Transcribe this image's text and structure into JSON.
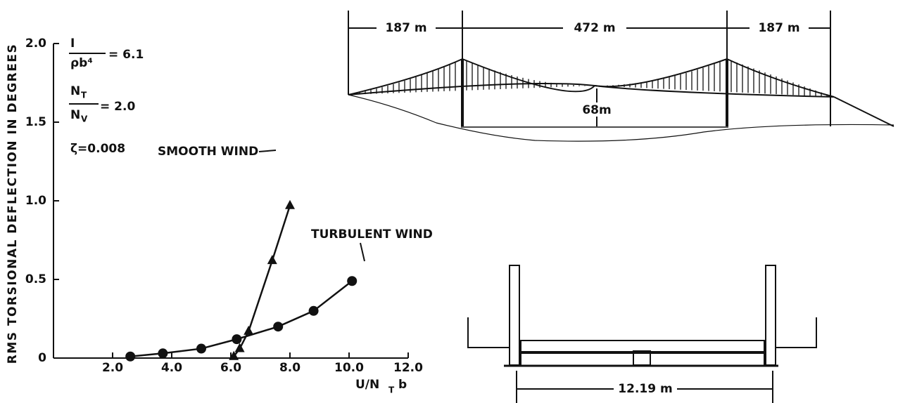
{
  "chart_data": {
    "type": "line",
    "y_label": "RMS TORSIONAL DEFLECTION IN DEGREES",
    "x_label": {
      "main": "U/N",
      "sub": "T",
      "tail": "b"
    },
    "xlim": [
      0,
      12
    ],
    "ylim": [
      0,
      2
    ],
    "xticks": [
      {
        "value": 2,
        "label": "2.0"
      },
      {
        "value": 4,
        "label": "4.0"
      },
      {
        "value": 6,
        "label": "6.0"
      },
      {
        "value": 8,
        "label": "8.0"
      },
      {
        "value": 10,
        "label": "10.0"
      },
      {
        "value": 12,
        "label": "12.0"
      }
    ],
    "yticks": [
      0,
      0.5,
      {
        "value": 1,
        "label": "1.0"
      },
      {
        "value": 1.5,
        "label": "1.5"
      },
      {
        "value": 2,
        "label": "2.0"
      }
    ],
    "series": [
      {
        "name": "SMOOTH WIND",
        "marker": "triangle",
        "color": "#111111",
        "x": [
          6.1,
          6.3,
          6.6,
          7.4,
          8.0
        ],
        "values": [
          0.01,
          0.06,
          0.17,
          0.62,
          0.97
        ]
      },
      {
        "name": "TURBULENT WIND",
        "marker": "circle",
        "color": "#111111",
        "x": [
          2.6,
          3.7,
          5.0,
          6.2,
          7.6,
          8.8,
          10.1
        ],
        "values": [
          0.01,
          0.03,
          0.06,
          0.12,
          0.2,
          0.3,
          0.49
        ]
      }
    ],
    "parameters": {
      "inertia": {
        "num": "I",
        "den": "ρb⁴",
        "rhs": "= 6.1"
      },
      "frequency": {
        "num": "N",
        "num_sub": "T",
        "den": "N",
        "den_sub": "V",
        "rhs": "= 2.0"
      },
      "damping": "ζ=0.008"
    }
  },
  "bridge": {
    "side_span_left": "187 m",
    "main_span": "472 m",
    "side_span_right": "187 m",
    "clearance": "68m",
    "deck_width": "12.19 m"
  }
}
